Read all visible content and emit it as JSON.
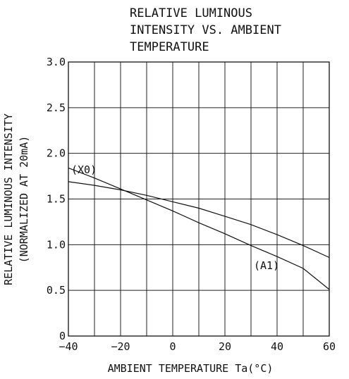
{
  "chart_data": {
    "type": "line",
    "title": [
      "RELATIVE LUMINOUS",
      "INTENSITY VS. AMBIENT",
      "TEMPERATURE"
    ],
    "xlabel": "AMBIENT TEMPERATURE Ta(°C)",
    "ylabel": [
      "RELATIVE LUMINOUS INTENSITY",
      "(NORMALIZED AT 20mA)"
    ],
    "xlim": [
      -40,
      60
    ],
    "ylim": [
      0,
      3.0
    ],
    "x_ticks": [
      -40,
      -20,
      0,
      20,
      40,
      60
    ],
    "x_tick_labels": [
      "−40",
      "−20",
      "0",
      "20",
      "40",
      "60"
    ],
    "x_grid": [
      -40,
      -30,
      -20,
      -10,
      0,
      10,
      20,
      30,
      40,
      50,
      60
    ],
    "y_ticks": [
      0,
      0.5,
      1.0,
      1.5,
      2.0,
      2.5,
      3.0
    ],
    "y_tick_labels": [
      "0",
      "0.5",
      "1.0",
      "1.5",
      "2.0",
      "2.5",
      "3.0"
    ],
    "grid": true,
    "series": [
      {
        "name": "(X0)",
        "x": [
          -40,
          -30,
          -20,
          -10,
          0,
          10,
          20,
          30,
          40,
          50,
          60
        ],
        "y": [
          1.69,
          1.65,
          1.6,
          1.54,
          1.47,
          1.4,
          1.31,
          1.22,
          1.11,
          0.99,
          0.86
        ]
      },
      {
        "name": "(A1)",
        "x": [
          -40,
          -30,
          -20,
          -10,
          0,
          10,
          20,
          30,
          40,
          50,
          60
        ],
        "y": [
          1.84,
          1.73,
          1.61,
          1.49,
          1.37,
          1.24,
          1.12,
          0.99,
          0.87,
          0.74,
          0.51
        ]
      }
    ]
  }
}
